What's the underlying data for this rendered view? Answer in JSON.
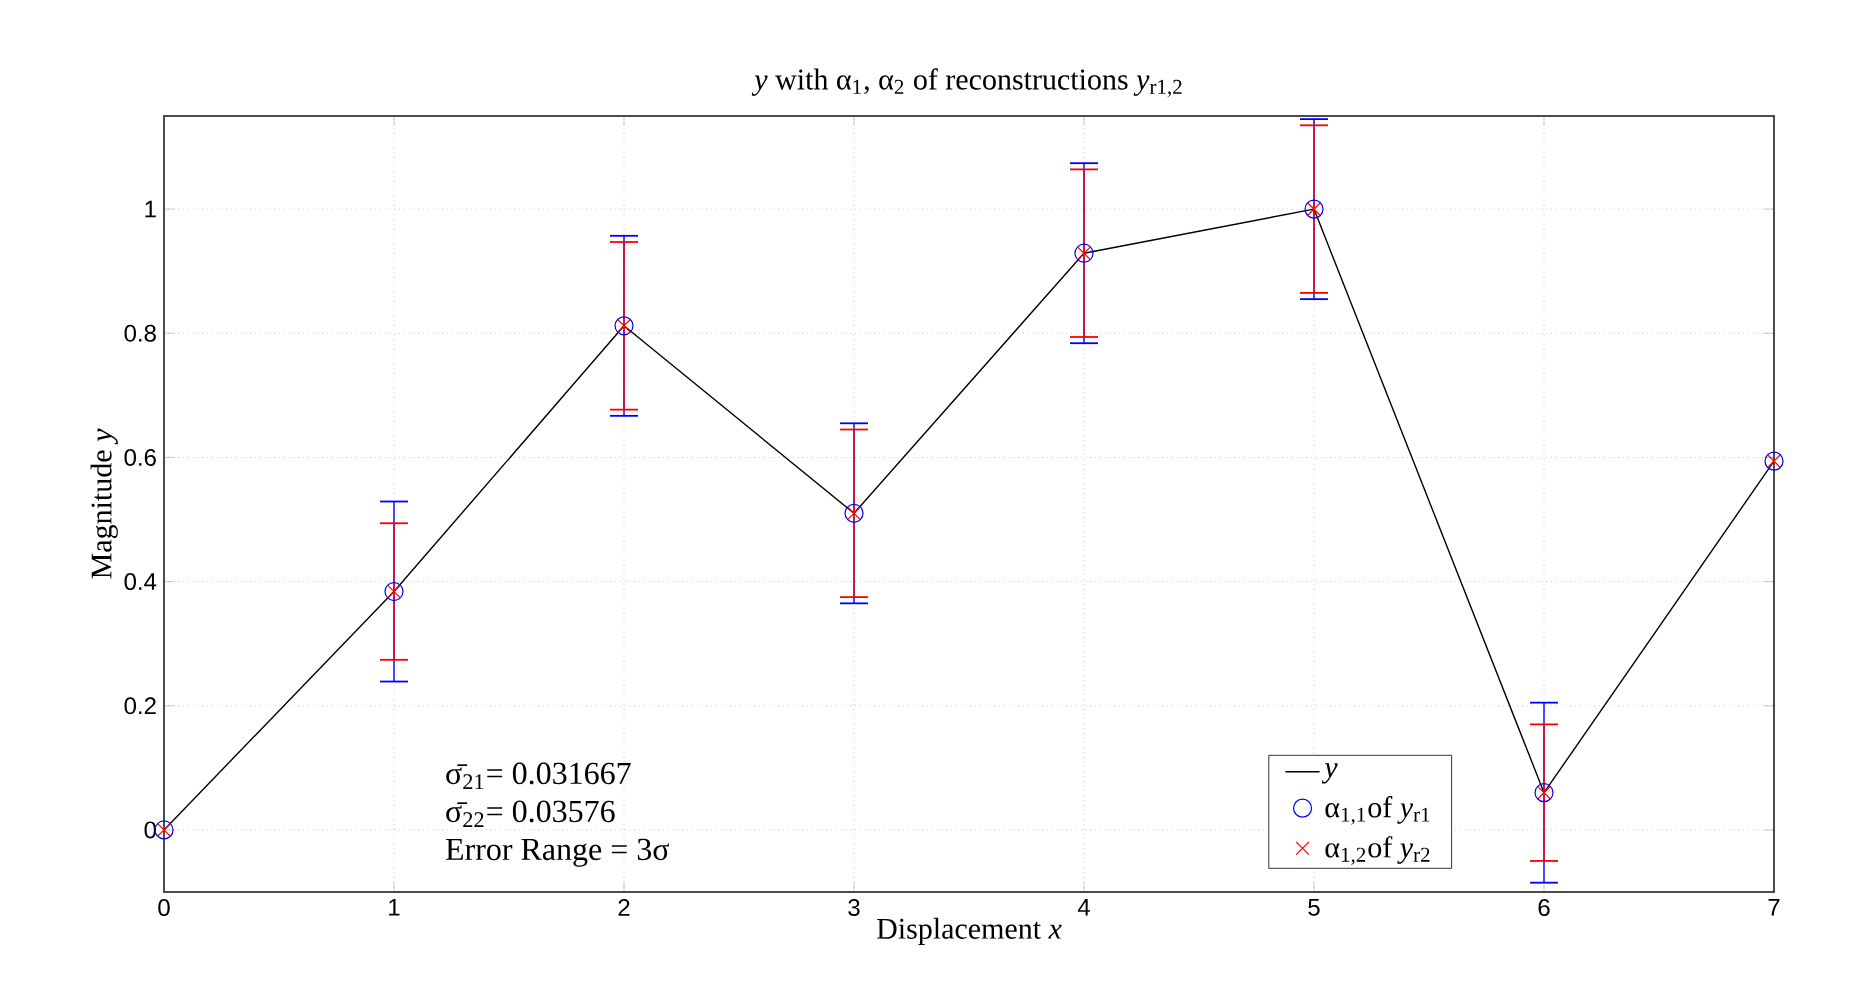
{
  "chart_data": {
    "type": "line",
    "title": "*y* with α$_{1}$, α$_{2}$ of reconstructions *y*$_{r1,2}$",
    "xlabel": "Displacement *x*",
    "ylabel": "Magnitude *y*",
    "annotations": [
      "σ̄$_{21}$= 0.031667",
      "σ̄$_{22}$= 0.03576",
      "Error Range = 3σ"
    ],
    "x": [
      0,
      1,
      2,
      3,
      4,
      5,
      6,
      7
    ],
    "series": [
      {
        "name": "*y*",
        "color": "#000000",
        "values": [
          0,
          0.384,
          0.812,
          0.51,
          0.929,
          1.0,
          0.06,
          0.594
        ]
      },
      {
        "name": "α$_{1,1}$of *y*$_{r1}$",
        "type": "scatter",
        "marker": "circle",
        "color": "#0000ff",
        "values": [
          0,
          0.384,
          0.812,
          0.51,
          0.929,
          1.0,
          0.06,
          0.594
        ],
        "errors": [
          null,
          0.145,
          0.145,
          0.145,
          0.145,
          0.145,
          0.145,
          null
        ]
      },
      {
        "name": "α$_{1,2}$of *y*$_{r2}$",
        "type": "scatter",
        "marker": "cross",
        "color": "#ff0000",
        "values": [
          0,
          0.384,
          0.812,
          0.51,
          0.929,
          1.0,
          0.06,
          0.594
        ],
        "errors": [
          null,
          0.11,
          0.135,
          0.135,
          0.135,
          0.135,
          0.11,
          null
        ]
      }
    ],
    "xlim": [
      0,
      7
    ],
    "ylim": [
      -0.1,
      1.15
    ],
    "xticks": [
      0,
      1,
      2,
      3,
      4,
      5,
      6,
      7
    ],
    "yticks": [
      0,
      0.2,
      0.4,
      0.6,
      0.8,
      1
    ],
    "grid": true,
    "legend": "bottom right"
  }
}
